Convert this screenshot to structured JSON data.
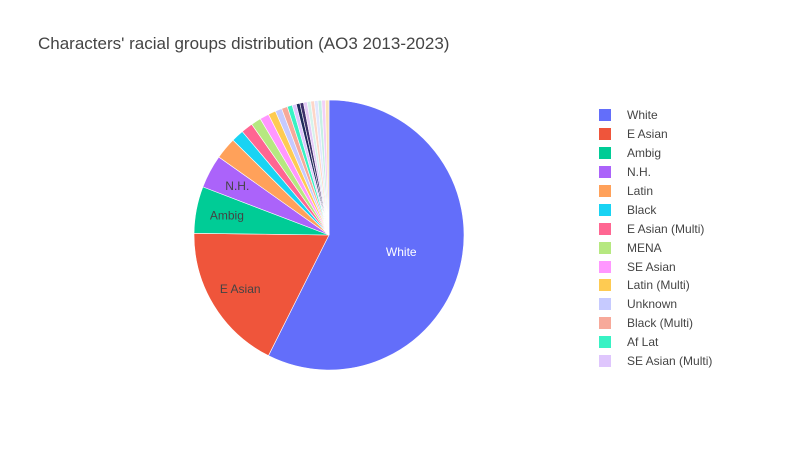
{
  "chart_data": {
    "type": "pie",
    "title": "Characters' racial groups distribution (AO3 2013-2023)",
    "categories": [
      "White",
      "E Asian",
      "Ambig",
      "N.H.",
      "Latin",
      "Black",
      "E Asian (Multi)",
      "MENA",
      "SE Asian",
      "Latin (Multi)",
      "Unknown",
      "Black (Multi)",
      "Af Lat",
      "SE Asian (Multi)"
    ],
    "values": [
      57.4,
      17.8,
      5.6,
      4.0,
      2.6,
      1.5,
      1.4,
      1.2,
      1.1,
      0.9,
      0.8,
      0.7,
      0.6,
      0.5
    ],
    "other_categories_unlabeled": 3.9,
    "slice_labels_shown": [
      "White",
      "E Asian",
      "Ambig",
      "N.H."
    ],
    "legend_position": "right"
  },
  "colors": [
    "#636efa",
    "#EF553B",
    "#00cc96",
    "#ab63fa",
    "#FFA15A",
    "#19d3f3",
    "#FF6692",
    "#B6E880",
    "#FF97FF",
    "#FECB52",
    "#c6caff",
    "#f7a99a",
    "#38f2c4",
    "#dfc6fd"
  ],
  "other_colors": [
    "#1f2a5c",
    "#3d2f6b",
    "#e4c9f7",
    "#d6f3ec",
    "#fdd6c8",
    "#e0e6ff",
    "#c6f0e4",
    "#f2d0f7",
    "#fbe3b8"
  ]
}
